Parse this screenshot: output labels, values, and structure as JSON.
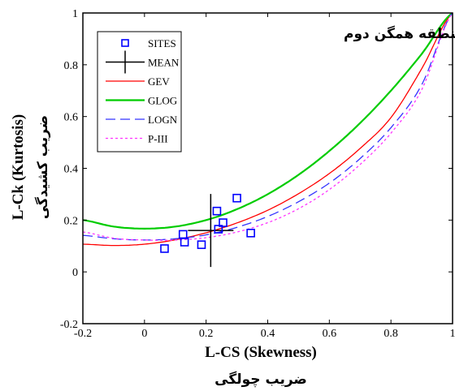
{
  "chart_data": {
    "type": "scatter",
    "title": "منطقه همگن دوم",
    "xlabel": "L-CS (Skewness)",
    "xlabel_fa": "ضریب چولگی",
    "ylabel": "L-Ck (Kurtosis)",
    "ylabel_fa": "ضریب کشیدگی",
    "xlim": [
      -0.2,
      1
    ],
    "ylim": [
      -0.2,
      1
    ],
    "xticks": [
      -0.2,
      0,
      0.2,
      0.4,
      0.6,
      0.8,
      1
    ],
    "xtick_labels": [
      "-0.2",
      "0",
      "0.2",
      "0.4",
      "0.6",
      "0.8",
      "1"
    ],
    "yticks": [
      -0.2,
      0,
      0.2,
      0.4,
      0.6,
      0.8,
      1
    ],
    "ytick_labels": [
      "-0.2",
      "0",
      "0.2",
      "0.4",
      "0.6",
      "0.8",
      "1"
    ],
    "grid": false,
    "legend_position": "top-left",
    "legend": [
      "SITES",
      "MEAN",
      "GEV",
      "GLOG",
      "LOGN",
      "P-III"
    ],
    "sites": {
      "name": "SITES",
      "color": "#0000ff",
      "x": [
        0.065,
        0.125,
        0.13,
        0.185,
        0.235,
        0.24,
        0.255,
        0.3,
        0.345
      ],
      "y": [
        0.09,
        0.145,
        0.115,
        0.105,
        0.235,
        0.165,
        0.19,
        0.285,
        0.15
      ]
    },
    "mean": {
      "name": "MEAN",
      "x": 0.215,
      "y": 0.16,
      "color": "#000000"
    },
    "curves": [
      {
        "name": "GEV",
        "color": "#ff0000",
        "dash": "solid",
        "x": [
          -0.2,
          -0.1,
          0,
          0.1,
          0.2,
          0.3,
          0.4,
          0.5,
          0.6,
          0.7,
          0.8,
          0.9,
          1
        ],
        "y": [
          0.107,
          0.102,
          0.107,
          0.124,
          0.151,
          0.189,
          0.238,
          0.302,
          0.38,
          0.477,
          0.596,
          0.785,
          1
        ]
      },
      {
        "name": "GLOG",
        "color": "#00cc00",
        "dash": "solid",
        "x": [
          -0.2,
          -0.1,
          0,
          0.1,
          0.2,
          0.3,
          0.4,
          0.5,
          0.6,
          0.7,
          0.8,
          0.9,
          1
        ],
        "y": [
          0.2,
          0.175,
          0.167,
          0.175,
          0.2,
          0.242,
          0.3,
          0.375,
          0.467,
          0.575,
          0.7,
          0.842,
          1
        ]
      },
      {
        "name": "LOGN",
        "color": "#3333ff",
        "dash": "dashed",
        "x": [
          -0.2,
          -0.1,
          0,
          0.1,
          0.2,
          0.3,
          0.4,
          0.5,
          0.6,
          0.7,
          0.8,
          0.9,
          1
        ],
        "y": [
          0.141,
          0.128,
          0.123,
          0.128,
          0.143,
          0.172,
          0.214,
          0.271,
          0.343,
          0.438,
          0.557,
          0.723,
          1
        ]
      },
      {
        "name": "P-III",
        "color": "#ff33ff",
        "dash": "dotted",
        "x": [
          -0.2,
          -0.1,
          0,
          0.1,
          0.2,
          0.3,
          0.4,
          0.5,
          0.6,
          0.7,
          0.8,
          0.9,
          1
        ],
        "y": [
          0.154,
          0.13,
          0.123,
          0.123,
          0.132,
          0.154,
          0.19,
          0.244,
          0.318,
          0.415,
          0.536,
          0.704,
          1
        ]
      }
    ]
  }
}
